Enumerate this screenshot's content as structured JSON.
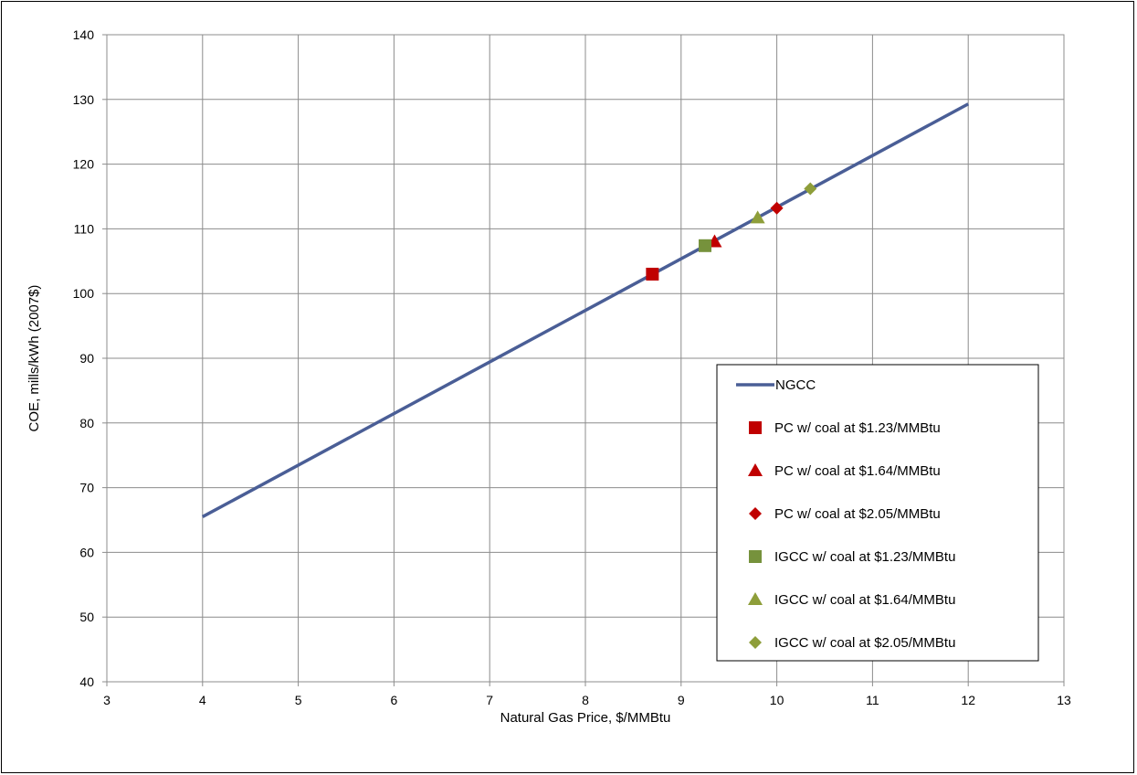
{
  "chart_data": {
    "type": "scatter",
    "title": "",
    "xlabel": "Natural Gas Price, $/MMBtu",
    "ylabel": "COE, mills/kWh (2007$)",
    "xlim": [
      3,
      13
    ],
    "ylim": [
      40,
      140
    ],
    "xticks": [
      "3",
      "4",
      "5",
      "6",
      "7",
      "8",
      "9",
      "10",
      "11",
      "12",
      "13"
    ],
    "yticks": [
      "40",
      "50",
      "60",
      "70",
      "80",
      "90",
      "100",
      "110",
      "120",
      "130",
      "140"
    ],
    "grid": true,
    "legend_position": "lower-right",
    "series": [
      {
        "name": "NGCC",
        "kind": "line",
        "color": "#4A5E96",
        "x": [
          4,
          12
        ],
        "y": [
          65.5,
          129.3
        ]
      },
      {
        "name": "PC w/ coal at $1.23/MMBtu",
        "kind": "marker",
        "marker": "square",
        "color": "#C00000",
        "x": [
          8.7
        ],
        "y": [
          103.0
        ]
      },
      {
        "name": "PC w/ coal at $1.64/MMBtu",
        "kind": "marker",
        "marker": "triangle",
        "color": "#C00000",
        "x": [
          9.35
        ],
        "y": [
          108.0
        ]
      },
      {
        "name": "PC w/ coal at $2.05/MMBtu",
        "kind": "marker",
        "marker": "diamond",
        "color": "#C00000",
        "x": [
          10.0
        ],
        "y": [
          113.2
        ]
      },
      {
        "name": "IGCC w/ coal at $1.23/MMBtu",
        "kind": "marker",
        "marker": "square",
        "color": "#76923C",
        "x": [
          9.25
        ],
        "y": [
          107.4
        ]
      },
      {
        "name": "IGCC w/ coal at $1.64/MMBtu",
        "kind": "marker",
        "marker": "triangle",
        "color": "#8E9E3A",
        "x": [
          9.8
        ],
        "y": [
          111.7
        ]
      },
      {
        "name": "IGCC w/ coal at $2.05/MMBtu",
        "kind": "marker",
        "marker": "diamond",
        "color": "#8E9E3A",
        "x": [
          10.35
        ],
        "y": [
          116.2
        ]
      }
    ]
  }
}
